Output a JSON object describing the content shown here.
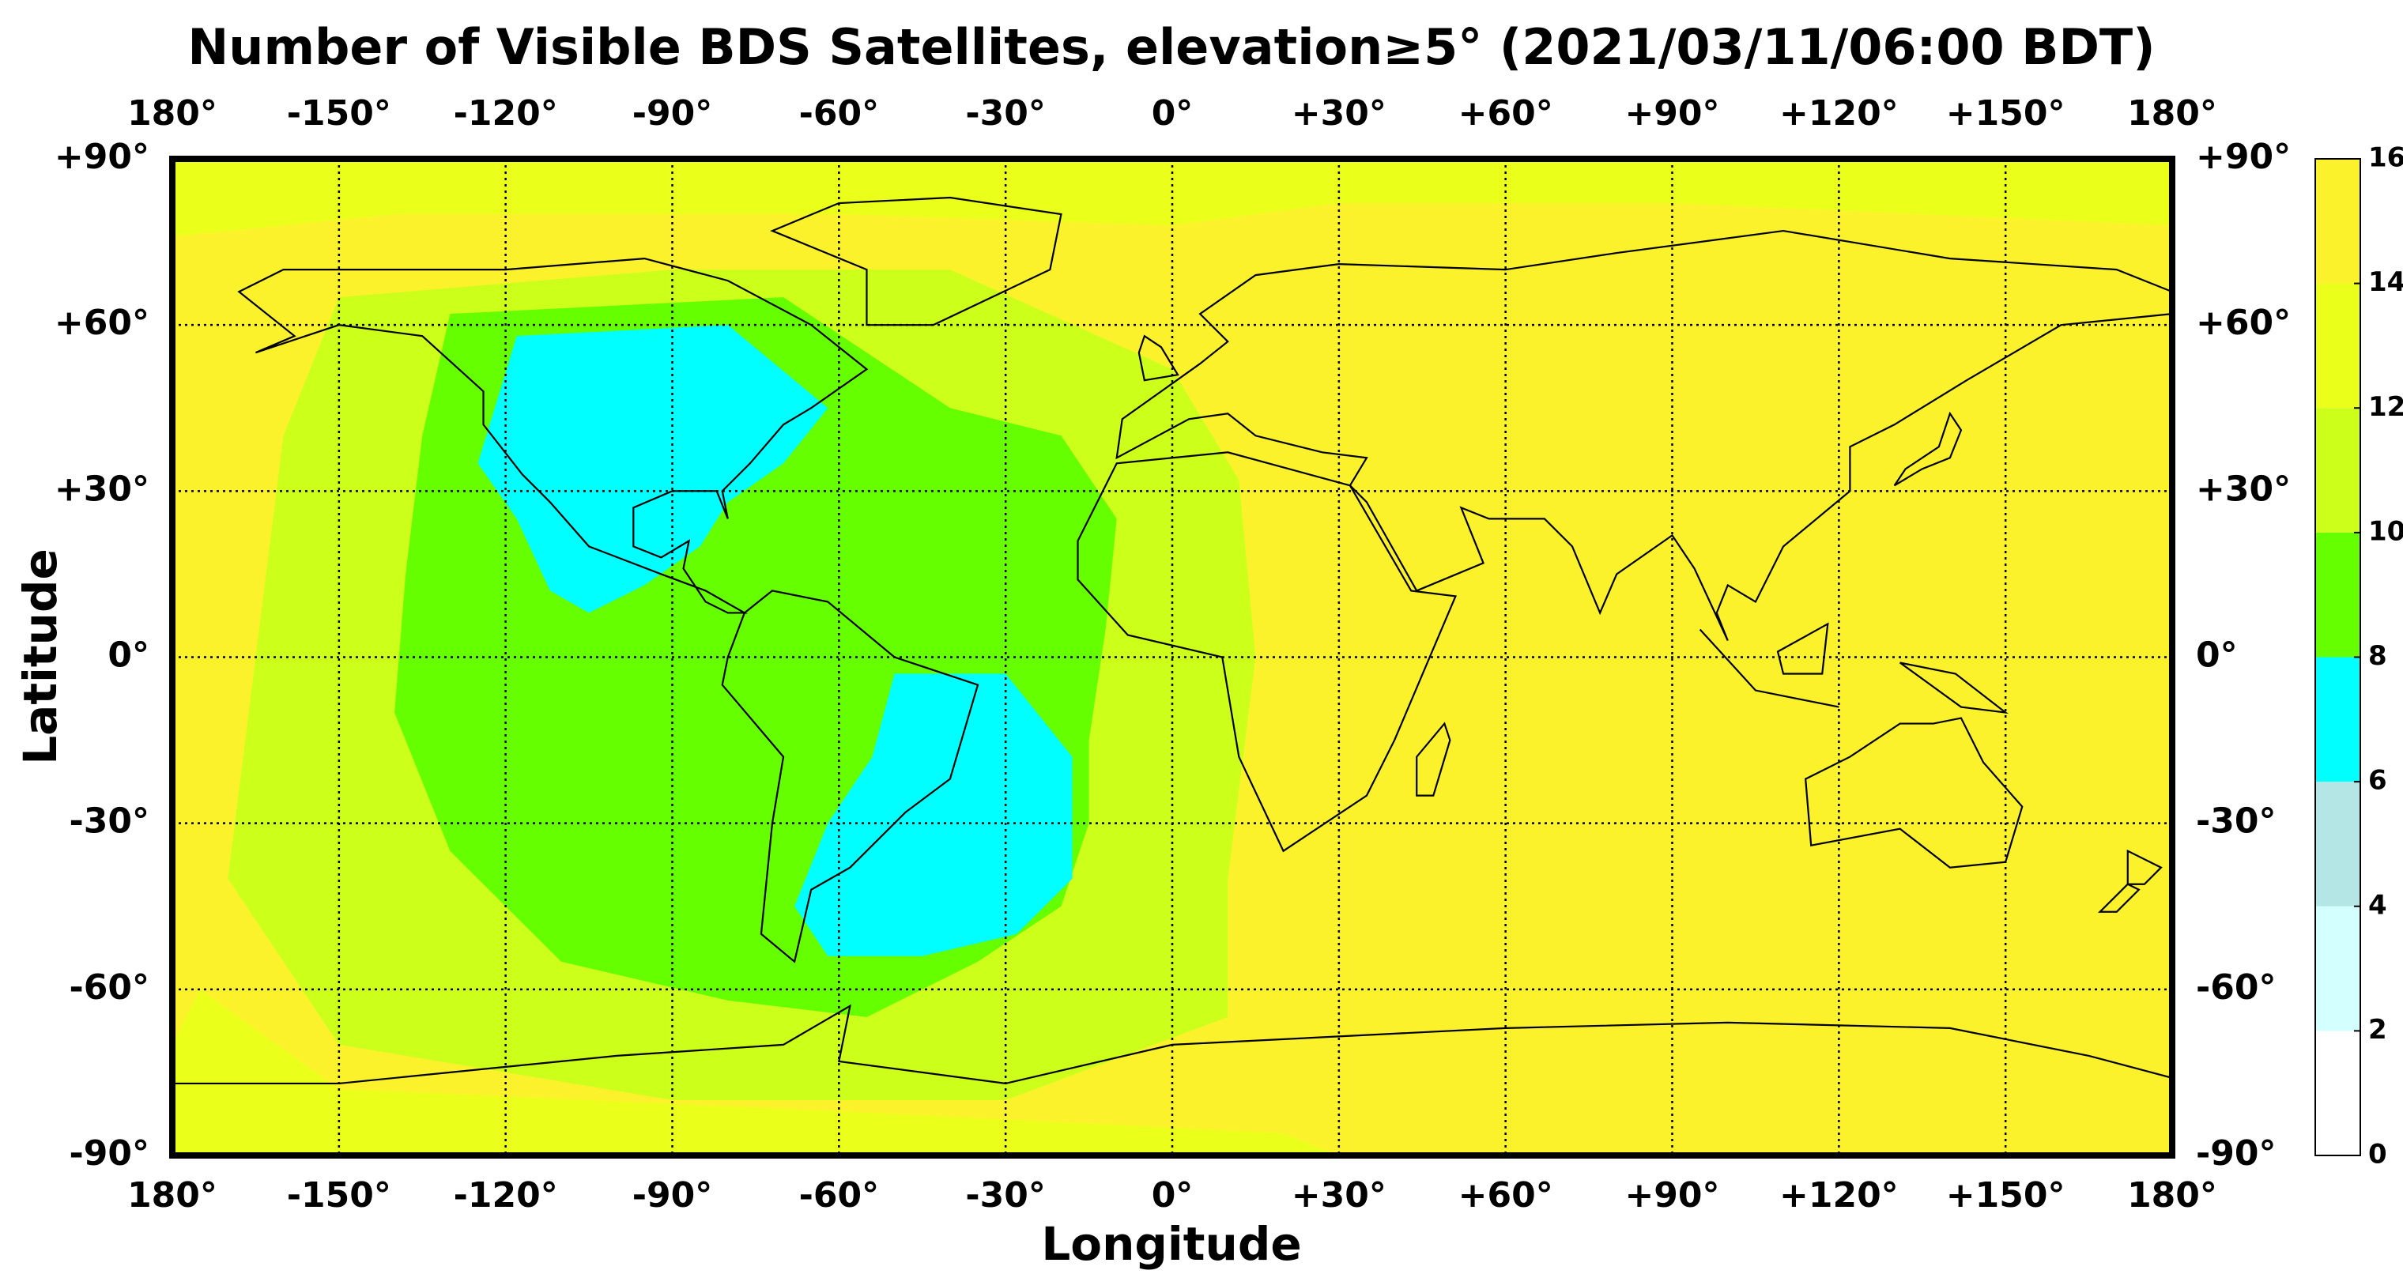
{
  "chart_data": {
    "type": "map",
    "title": "Number of Visible BDS Satellites, elevation≥5° (2021/03/11/06:00 BDT)",
    "x_label": "Longitude",
    "y_label": "Latitude",
    "xlim": [
      -180,
      180
    ],
    "ylim": [
      -90,
      90
    ],
    "xticks": [
      {
        "value": -180,
        "label": "180°"
      },
      {
        "value": -150,
        "label": "-150°"
      },
      {
        "value": -120,
        "label": "-120°"
      },
      {
        "value": -90,
        "label": "-90°"
      },
      {
        "value": -60,
        "label": "-60°"
      },
      {
        "value": -30,
        "label": "-30°"
      },
      {
        "value": 0,
        "label": "0°"
      },
      {
        "value": 30,
        "label": "+30°"
      },
      {
        "value": 60,
        "label": "+60°"
      },
      {
        "value": 90,
        "label": "+90°"
      },
      {
        "value": 120,
        "label": "+120°"
      },
      {
        "value": 150,
        "label": "+150°"
      },
      {
        "value": 180,
        "label": "180°"
      }
    ],
    "yticks": [
      {
        "value": -90,
        "label": "-90°"
      },
      {
        "value": -60,
        "label": "-60°"
      },
      {
        "value": -30,
        "label": "-30°"
      },
      {
        "value": 0,
        "label": "0°"
      },
      {
        "value": 30,
        "label": "+30°"
      },
      {
        "value": 60,
        "label": "+60°"
      },
      {
        "value": 90,
        "label": "+90°"
      }
    ],
    "grid": true,
    "colorbar": {
      "ticks": [
        0,
        2,
        4,
        6,
        8,
        10,
        12,
        14,
        16
      ],
      "colors": [
        "#ffffff",
        "#d4ffff",
        "#b4e6e6",
        "#00ffff",
        "#66ff00",
        "#ccff1a",
        "#eaff1a",
        "#fcf22c"
      ]
    },
    "regions": [
      {
        "value": 15,
        "polygon": [
          [
            -180,
            -90
          ],
          [
            180,
            -90
          ],
          [
            180,
            90
          ],
          [
            -180,
            90
          ]
        ]
      },
      {
        "value": 13,
        "polygon": [
          [
            -180,
            76
          ],
          [
            -140,
            80
          ],
          [
            -60,
            80
          ],
          [
            0,
            78
          ],
          [
            30,
            82
          ],
          [
            90,
            82
          ],
          [
            180,
            78
          ],
          [
            180,
            90
          ],
          [
            -180,
            90
          ]
        ]
      },
      {
        "value": 13,
        "polygon": [
          [
            -175,
            -60
          ],
          [
            -150,
            -78
          ],
          [
            -60,
            -82
          ],
          [
            20,
            -86
          ],
          [
            30,
            -90
          ],
          [
            -180,
            -90
          ],
          [
            -180,
            -70
          ]
        ]
      },
      {
        "value": 11,
        "polygon": [
          [
            -150,
            65
          ],
          [
            -90,
            70
          ],
          [
            -40,
            70
          ],
          [
            0,
            52
          ],
          [
            12,
            32
          ],
          [
            15,
            0
          ],
          [
            10,
            -40
          ],
          [
            10,
            -65
          ],
          [
            -30,
            -80
          ],
          [
            -90,
            -80
          ],
          [
            -150,
            -70
          ],
          [
            -170,
            -40
          ],
          [
            -165,
            0
          ],
          [
            -160,
            40
          ]
        ]
      },
      {
        "value": 9,
        "polygon": [
          [
            -130,
            62
          ],
          [
            -70,
            65
          ],
          [
            -55,
            55
          ],
          [
            -40,
            45
          ],
          [
            -20,
            40
          ],
          [
            -10,
            25
          ],
          [
            -12,
            5
          ],
          [
            -15,
            -15
          ],
          [
            -15,
            -30
          ],
          [
            -20,
            -45
          ],
          [
            -35,
            -55
          ],
          [
            -55,
            -65
          ],
          [
            -80,
            -62
          ],
          [
            -110,
            -55
          ],
          [
            -130,
            -35
          ],
          [
            -140,
            -10
          ],
          [
            -138,
            15
          ],
          [
            -135,
            40
          ]
        ]
      },
      {
        "value": 7,
        "polygon": [
          [
            -118,
            58
          ],
          [
            -80,
            60
          ],
          [
            -62,
            45
          ],
          [
            -70,
            35
          ],
          [
            -80,
            28
          ],
          [
            -85,
            20
          ],
          [
            -95,
            13
          ],
          [
            -105,
            8
          ],
          [
            -112,
            12
          ],
          [
            -118,
            25
          ],
          [
            -125,
            35
          ]
        ]
      },
      {
        "value": 7,
        "polygon": [
          [
            -50,
            -3
          ],
          [
            -30,
            -3
          ],
          [
            -18,
            -18
          ],
          [
            -18,
            -40
          ],
          [
            -28,
            -50
          ],
          [
            -45,
            -54
          ],
          [
            -62,
            -54
          ],
          [
            -68,
            -45
          ],
          [
            -62,
            -30
          ],
          [
            -54,
            -18
          ]
        ]
      }
    ]
  }
}
